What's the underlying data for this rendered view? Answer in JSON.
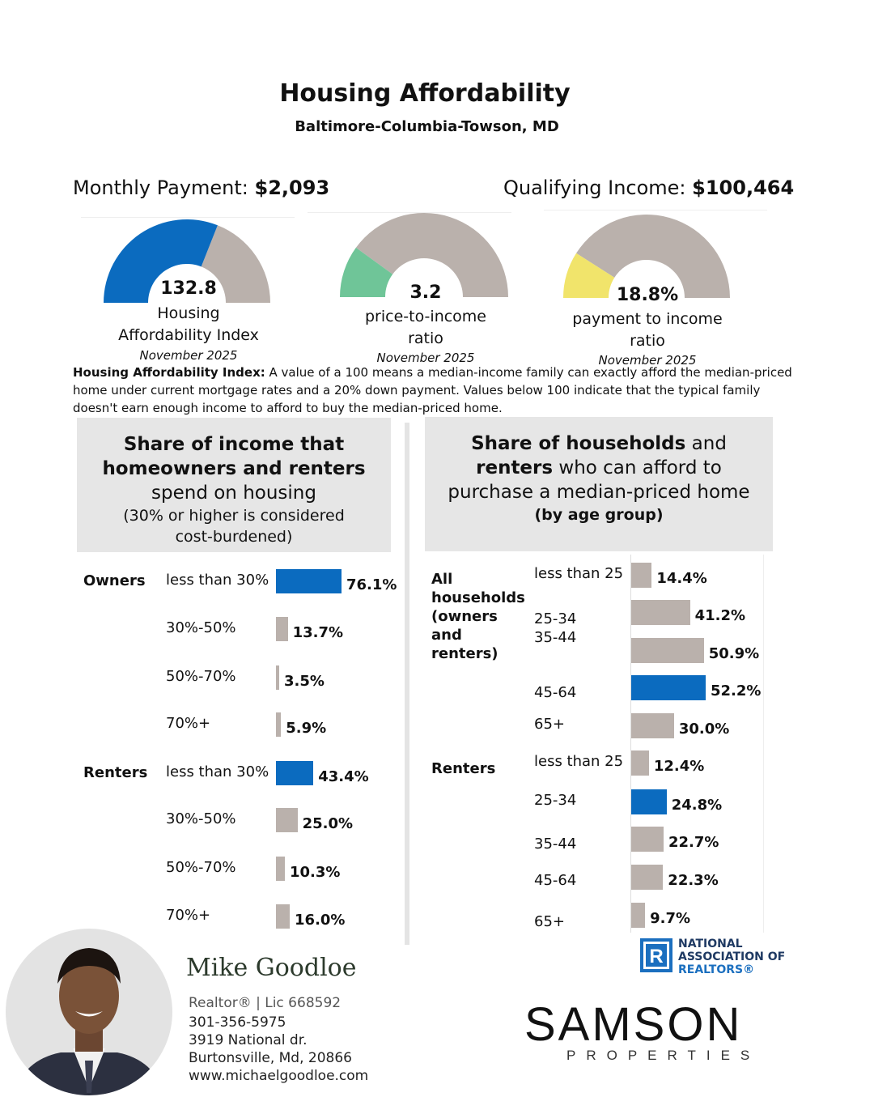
{
  "header": {
    "title": "Housing Affordability",
    "subtitle": "Baltimore-Columbia-Towson, MD"
  },
  "kpis": {
    "monthly_payment_label": "Monthly Payment:",
    "monthly_payment_value": "$2,093",
    "qualifying_income_label": "Qualifying Income:",
    "qualifying_income_value": "$100,464"
  },
  "gauges": [
    {
      "value": "132.8",
      "label_lines": [
        "Housing",
        "Affordability Index"
      ],
      "date": "November 2025",
      "fill_fraction": 0.62,
      "color": "#0b6bbf"
    },
    {
      "value": "3.2",
      "label_lines": [
        "price-to-income",
        "ratio"
      ],
      "date": "November 2025",
      "fill_fraction": 0.2,
      "color": "#6fc598"
    },
    {
      "value": "18.8%",
      "label_lines": [
        "payment to income",
        "ratio"
      ],
      "date": "November 2025",
      "fill_fraction": 0.18,
      "color": "#f1e46b"
    }
  ],
  "gauge_track_color": "#bab1ac",
  "hai_note": {
    "term": "Housing Affordability Index:",
    "text": " A value of a 100 means a median-income family can exactly afford the median-priced home under current mortgage rates and a 20% down payment. Values below 100 indicate that the typical family doesn't earn enough income to afford to buy the median-priced home."
  },
  "left_panel": {
    "heading_bold": "Share of income that homeowners and renters",
    "heading_normal": "spend on housing",
    "heading_note": "(30% or higher is considered cost-burdened)"
  },
  "right_panel": {
    "h1_bold": "Share of households",
    "h1_normal": " and",
    "h2_bold": "renters",
    "h2_normal": " who can afford to",
    "h3_normal": "purchase a median-priced home",
    "h4_bold": "(by age group)"
  },
  "colors": {
    "highlight": "#0b6bbf",
    "default": "#bab1ac"
  },
  "chart_data": [
    {
      "type": "bar",
      "orientation": "horizontal",
      "groups": [
        {
          "name": "Owners",
          "categories": [
            "less than 30%",
            "30%-50%",
            "50%-70%",
            "70%+"
          ],
          "values": [
            76.1,
            13.7,
            3.5,
            5.9
          ],
          "labels": [
            "76.1%",
            "13.7%",
            "3.5%",
            "5.9%"
          ],
          "highlight": [
            true,
            false,
            false,
            false
          ]
        },
        {
          "name": "Renters",
          "categories": [
            "less than 30%",
            "30%-50%",
            "50%-70%",
            "70%+"
          ],
          "values": [
            43.4,
            25.0,
            10.3,
            16.0
          ],
          "labels": [
            "43.4%",
            "25.0%",
            "10.3%",
            "16.0%"
          ],
          "highlight": [
            true,
            false,
            false,
            false
          ]
        }
      ],
      "unit": "%"
    },
    {
      "type": "bar",
      "orientation": "horizontal",
      "groups": [
        {
          "name_lines": [
            "All",
            "households",
            "(owners",
            "and",
            "renters)"
          ],
          "categories": [
            "less than 25",
            "25-34",
            "35-44",
            "45-64",
            "65+"
          ],
          "values": [
            14.4,
            41.2,
            50.9,
            52.2,
            30.0
          ],
          "labels": [
            "14.4%",
            "41.2%",
            "50.9%",
            "52.2%",
            "30.0%"
          ],
          "highlight": [
            false,
            false,
            false,
            true,
            false
          ]
        },
        {
          "name_lines": [
            "Renters"
          ],
          "categories": [
            "less than 25",
            "25-34",
            "35-44",
            "45-64",
            "65+"
          ],
          "values": [
            12.4,
            24.8,
            22.7,
            22.3,
            9.7
          ],
          "labels": [
            "12.4%",
            "24.8%",
            "22.7%",
            "22.3%",
            "9.7%"
          ],
          "highlight": [
            false,
            true,
            false,
            false,
            false
          ]
        }
      ],
      "unit": "%"
    }
  ],
  "agent": {
    "name": "Mike Goodloe",
    "role": "Realtor® | Lic 668592",
    "phone": "301-356-5975",
    "address1": "3919 National dr.",
    "address2": "Burtonsville, Md, 20866",
    "website": "www.michaelgoodloe.com"
  },
  "nar_logo": {
    "line1": "NATIONAL",
    "line2": "ASSOCIATION OF",
    "line3": "REALTORS®",
    "mark": "R"
  },
  "brokerage": {
    "name": "SAMSON",
    "sub": "PROPERTIES"
  }
}
